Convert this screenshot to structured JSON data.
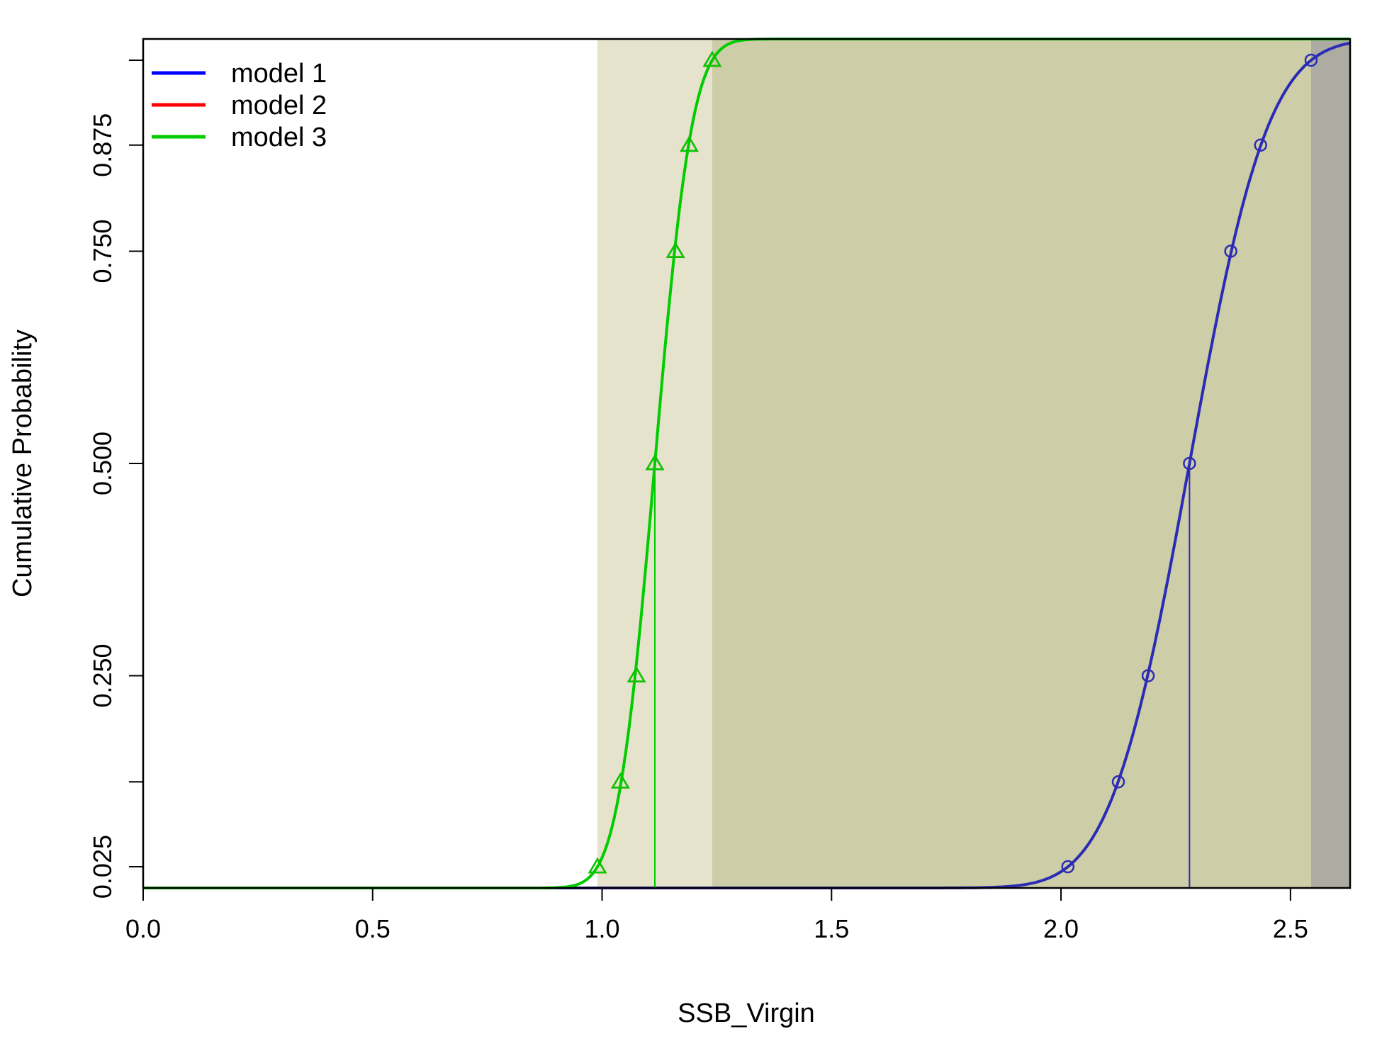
{
  "chart_data": {
    "type": "line",
    "title": "",
    "xlabel": "SSB_Virgin",
    "ylabel": "Cumulative Probability",
    "xlim": [
      0,
      2.63
    ],
    "ylim": [
      0.0,
      1.0
    ],
    "x_ticks": [
      "0.0",
      "0.5",
      "1.0",
      "1.5",
      "2.0",
      "2.5"
    ],
    "y_ticks": [
      "0.025",
      "0.250",
      "0.500",
      "0.750",
      "0.875"
    ],
    "y_tick_positions": [
      0.025,
      0.125,
      0.25,
      0.5,
      0.75,
      0.875,
      0.975
    ],
    "legend_position": "top-left",
    "grid": false,
    "series": [
      {
        "name": "model 1",
        "color": "#0000ff",
        "curve_color": "#2b2bb5",
        "marker": "circle",
        "quantiles": {
          "p": [
            0.025,
            0.125,
            0.25,
            0.5,
            0.75,
            0.875,
            0.975
          ],
          "x": [
            2.015,
            2.125,
            2.19,
            2.28,
            2.37,
            2.435,
            2.545
          ]
        },
        "median": 2.28,
        "interval": [
          2.545,
          2.63
        ],
        "ci_fill": "#acaca3"
      },
      {
        "name": "model 2",
        "color": "#ff0000",
        "curve_color": "#ff0000",
        "marker": "triangle",
        "quantiles": {
          "p": [
            0.025,
            0.125,
            0.25,
            0.5,
            0.75,
            0.875,
            0.975
          ],
          "x": [
            0.99,
            1.04,
            1.075,
            1.115,
            1.16,
            1.19,
            1.24
          ]
        },
        "median": 1.115,
        "interval": [
          1.24,
          2.545
        ],
        "ci_fill": "#cdcda7"
      },
      {
        "name": "model 3",
        "color": "#00cc00",
        "curve_color": "#00cc00",
        "marker": "triangle",
        "quantiles": {
          "p": [
            0.025,
            0.125,
            0.25,
            0.5,
            0.75,
            0.875,
            0.975
          ],
          "x": [
            0.99,
            1.04,
            1.075,
            1.115,
            1.16,
            1.19,
            1.24
          ]
        },
        "median": 1.115,
        "interval": [
          0.99,
          1.24
        ],
        "ci_fill": "#e5e3cc"
      }
    ]
  }
}
